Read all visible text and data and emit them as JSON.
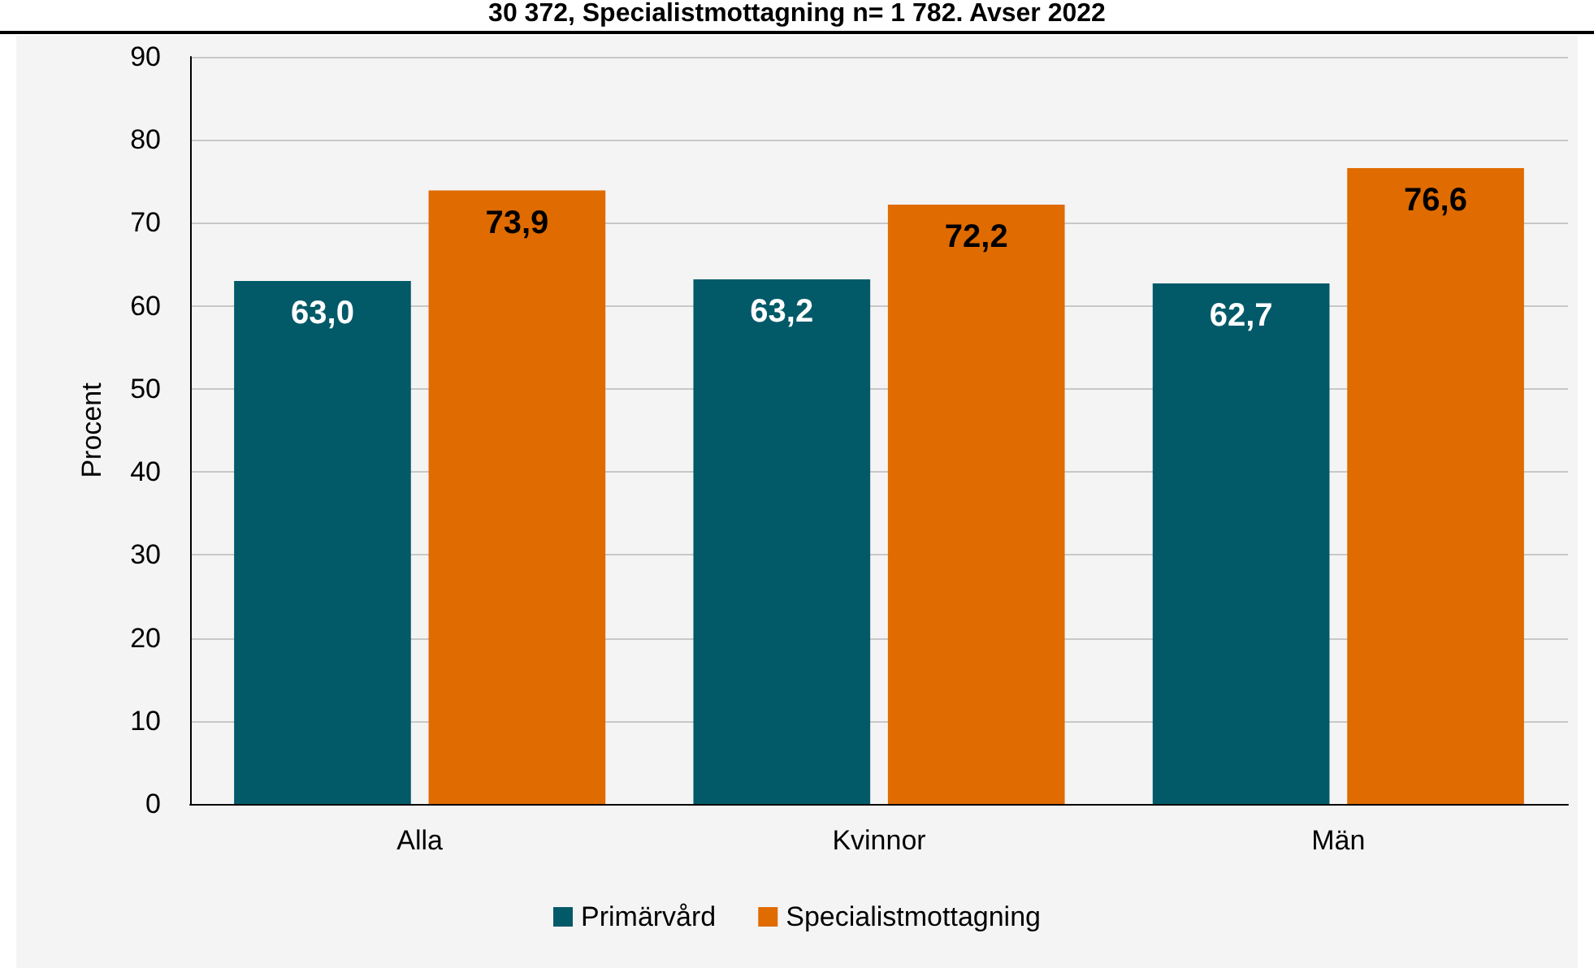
{
  "chart_data": {
    "type": "bar",
    "title": "30 372, Specialistmottagning n= 1 782. Avser 2022",
    "ylabel": "Procent",
    "categories": [
      "Alla",
      "Kvinnor",
      "Män"
    ],
    "series": [
      {
        "name": "Primärvård",
        "color": "#025a69",
        "values": [
          63.0,
          63.2,
          62.7
        ],
        "value_labels": [
          "63,0",
          "63,2",
          "62,7"
        ]
      },
      {
        "name": "Specialistmottagning",
        "color": "#e06b00",
        "values": [
          73.9,
          72.2,
          76.6
        ],
        "value_labels": [
          "73,9",
          "72,2",
          "76,6"
        ]
      }
    ],
    "ylim": [
      0,
      90
    ],
    "yticks": [
      0,
      10,
      20,
      30,
      40,
      50,
      60,
      70,
      80,
      90
    ],
    "grid": "y",
    "legend": "bottom"
  }
}
